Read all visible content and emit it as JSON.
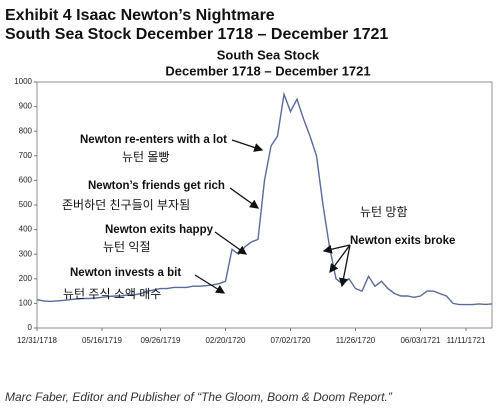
{
  "chart_data": {
    "type": "line",
    "header": [
      "Exhibit 4  Isaac Newton’s Nightmare",
      "South Sea Stock December 1718 – December 1721"
    ],
    "title": "South Sea Stock",
    "subtitle": "December 1718 – December 1721",
    "categories": [
      "12/31/1718",
      null,
      null,
      null,
      null,
      null,
      null,
      null,
      null,
      null,
      "05/16/1719",
      null,
      null,
      null,
      null,
      null,
      null,
      null,
      null,
      "09/26/1719",
      null,
      null,
      null,
      null,
      null,
      null,
      null,
      null,
      null,
      "02/20/1720",
      null,
      null,
      null,
      null,
      null,
      null,
      null,
      null,
      null,
      "07/02/1720",
      null,
      null,
      null,
      null,
      null,
      null,
      null,
      null,
      null,
      "11/26/1720",
      null,
      null,
      null,
      null,
      null,
      null,
      null,
      null,
      null,
      "06/03/1721",
      null,
      null,
      null,
      null,
      null,
      null,
      "11/11/1721",
      null,
      null,
      null,
      null
    ],
    "series": [
      {
        "name": "South Sea Stock",
        "color": "#5a6a9a",
        "values": [
          115,
          110,
          108,
          110,
          112,
          115,
          118,
          120,
          120,
          122,
          125,
          128,
          130,
          130,
          135,
          135,
          140,
          150,
          155,
          160,
          160,
          165,
          165,
          165,
          170,
          170,
          172,
          175,
          180,
          190,
          320,
          300,
          330,
          350,
          360,
          600,
          740,
          780,
          950,
          880,
          930,
          850,
          780,
          700,
          500,
          330,
          200,
          180,
          200,
          160,
          150,
          210,
          170,
          190,
          160,
          140,
          130,
          130,
          125,
          130,
          150,
          150,
          140,
          130,
          100,
          95,
          95,
          95,
          98,
          96,
          98
        ]
      }
    ],
    "ylim": [
      0,
      1000
    ],
    "yticks": [
      0,
      100,
      200,
      300,
      400,
      500,
      600,
      700,
      800,
      900,
      1000
    ],
    "annotations": [
      "Newton re-enters with a lot",
      "뉴턴 몰빵",
      "Newton’s friends get rich",
      "존버하던 친구들이 부자됨",
      "Newton exits happy",
      "뉴턴 익절",
      "Newton invests a bit",
      "뉴턴 주식 소액 매수",
      "뉴턴 망함",
      "Newton exits broke"
    ],
    "footer": "Marc Faber, Editor and Publisher of “The Gloom, Boom & Doom Report.”"
  }
}
